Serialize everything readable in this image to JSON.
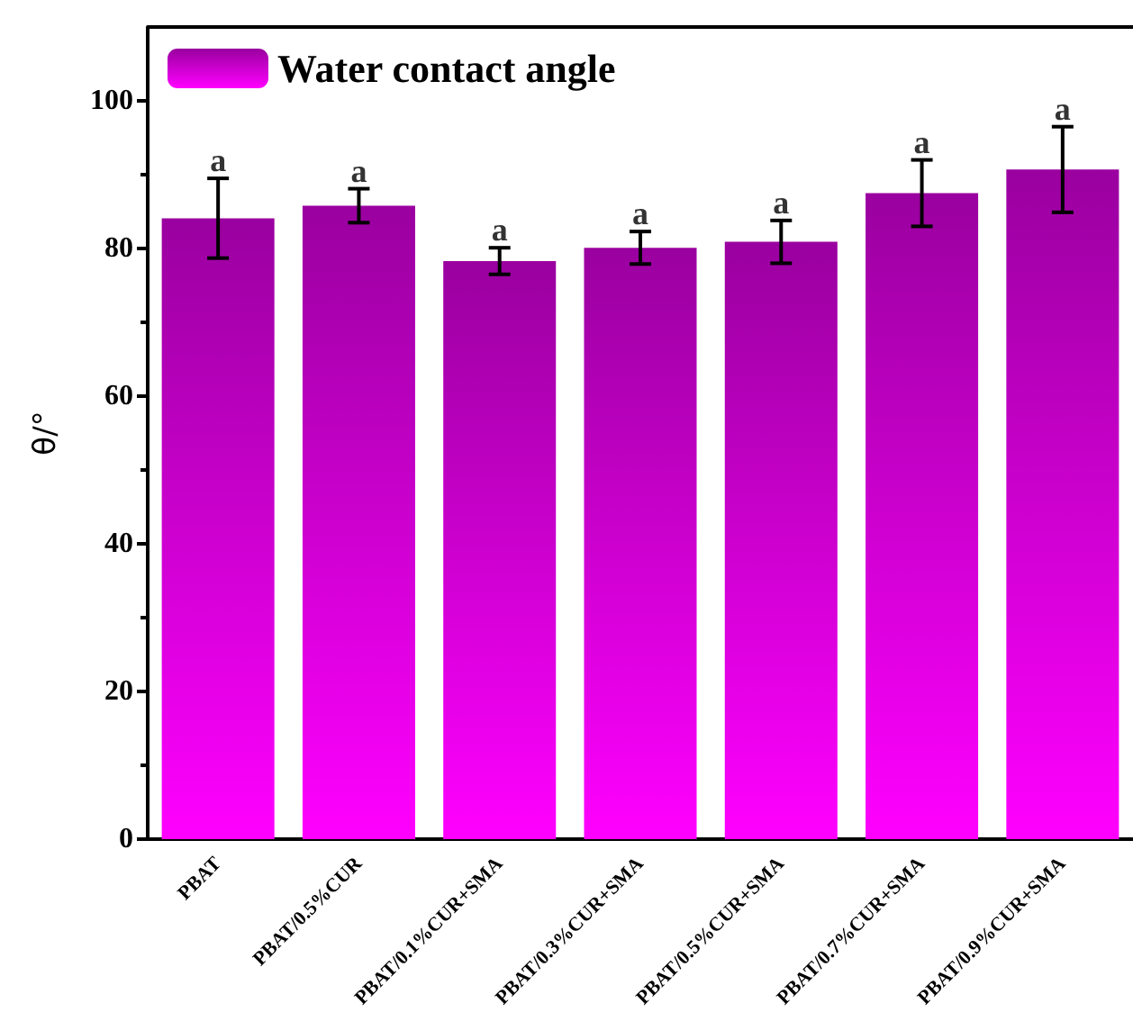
{
  "chart_data": {
    "type": "bar",
    "ylabel": "θ/°",
    "categories": [
      "PBAT",
      "PBAT/0.5%CUR",
      "PBAT/0.1%CUR+SMA",
      "PBAT/0.3%CUR+SMA",
      "PBAT/0.5%CUR+SMA",
      "PBAT/0.7%CUR+SMA",
      "PBAT/0.9%CUR+SMA"
    ],
    "series": [
      {
        "name": "Water contact angle",
        "color": "#9a009f",
        "values": [
          84.1,
          85.8,
          78.3,
          80.1,
          80.9,
          87.5,
          90.7
        ],
        "errors": [
          5.4,
          2.3,
          1.8,
          2.2,
          2.9,
          4.5,
          5.8
        ]
      }
    ],
    "annotations": [
      {
        "text": "a",
        "x": "PBAT",
        "y": 89.5
      },
      {
        "text": "a",
        "x": "PBAT/0.5%CUR",
        "y": 88.1
      },
      {
        "text": "a",
        "x": "PBAT/0.1%CUR+SMA",
        "y": 80.1
      },
      {
        "text": "a",
        "x": "PBAT/0.3%CUR+SMA",
        "y": 82.3
      },
      {
        "text": "a",
        "x": "PBAT/0.5%CUR+SMA",
        "y": 83.8
      },
      {
        "text": "a",
        "x": "PBAT/0.7%CUR+SMA",
        "y": 92
      },
      {
        "text": "a",
        "x": "PBAT/0.9%CUR+SMA",
        "y": 96.5
      }
    ],
    "ylim": [
      0,
      110
    ],
    "yticks": [
      0,
      20,
      40,
      60,
      80,
      100
    ],
    "grid": false,
    "legend": "top left"
  }
}
